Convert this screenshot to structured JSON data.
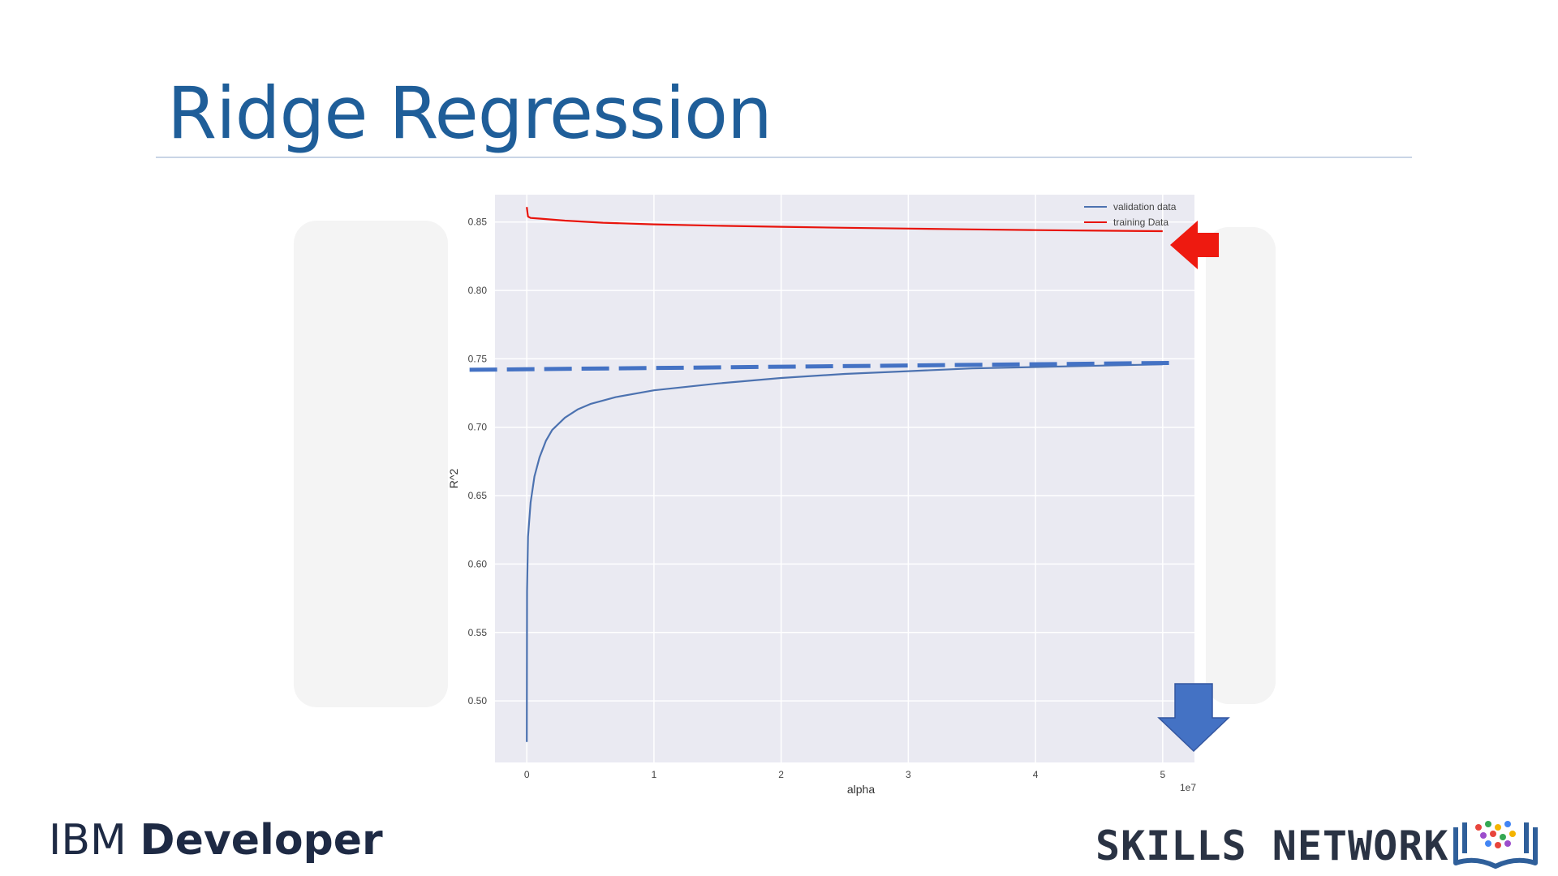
{
  "slide": {
    "title": "Ridge Regression"
  },
  "footer": {
    "brand_left_light": "IBM",
    "brand_left_bold": "Developer",
    "brand_right": "SKILLS NETWORK"
  },
  "colors": {
    "title": "#1f5e99",
    "plot_background": "#eaeaf2",
    "validation_line": "#4c72b0",
    "training_line": "#e8140c",
    "dashed_line": "#4472c4",
    "red_arrow": "#ee1a10",
    "blue_arrow": "#4472c4"
  },
  "icons": {
    "red_arrow": "arrow-left-icon",
    "blue_arrow": "arrow-down-icon",
    "logo": "skills-network-book-icon"
  },
  "chart_data": {
    "type": "line",
    "xlabel": "alpha",
    "ylabel": "R^2",
    "x_offset_label": "1e7",
    "xlim": [
      -0.25,
      5.25
    ],
    "ylim": [
      0.455,
      0.87
    ],
    "x_ticks": [
      0,
      1,
      2,
      3,
      4,
      5
    ],
    "x_tick_labels": [
      "0",
      "1",
      "2",
      "3",
      "4",
      "5"
    ],
    "y_ticks": [
      0.5,
      0.55,
      0.6,
      0.65,
      0.7,
      0.75,
      0.8,
      0.85
    ],
    "y_tick_labels": [
      "0.50",
      "0.55",
      "0.60",
      "0.65",
      "0.70",
      "0.75",
      "0.80",
      "0.85"
    ],
    "grid": true,
    "legend_position": "top-right",
    "series": [
      {
        "name": "validation data",
        "x": [
          0,
          0.002,
          0.01,
          0.03,
          0.06,
          0.1,
          0.15,
          0.2,
          0.3,
          0.4,
          0.5,
          0.7,
          1.0,
          1.5,
          2.0,
          2.5,
          3.0,
          3.5,
          4.0,
          4.5,
          5.0
        ],
        "y": [
          0.47,
          0.58,
          0.62,
          0.645,
          0.664,
          0.678,
          0.69,
          0.698,
          0.707,
          0.713,
          0.717,
          0.722,
          0.727,
          0.732,
          0.736,
          0.739,
          0.741,
          0.743,
          0.744,
          0.745,
          0.746
        ]
      },
      {
        "name": "training Data",
        "x": [
          0,
          0.005,
          0.01,
          0.03,
          0.1,
          0.3,
          0.6,
          1.0,
          1.5,
          2.0,
          2.5,
          3.0,
          3.5,
          4.0,
          4.5,
          5.0
        ],
        "y": [
          0.861,
          0.857,
          0.854,
          0.853,
          0.8525,
          0.851,
          0.8495,
          0.8483,
          0.8473,
          0.8465,
          0.8458,
          0.8452,
          0.8446,
          0.8441,
          0.8437,
          0.8433
        ]
      }
    ],
    "reference_line": {
      "style": "dashed",
      "x": [
        -0.45,
        5.05
      ],
      "y": [
        0.742,
        0.747
      ]
    }
  }
}
